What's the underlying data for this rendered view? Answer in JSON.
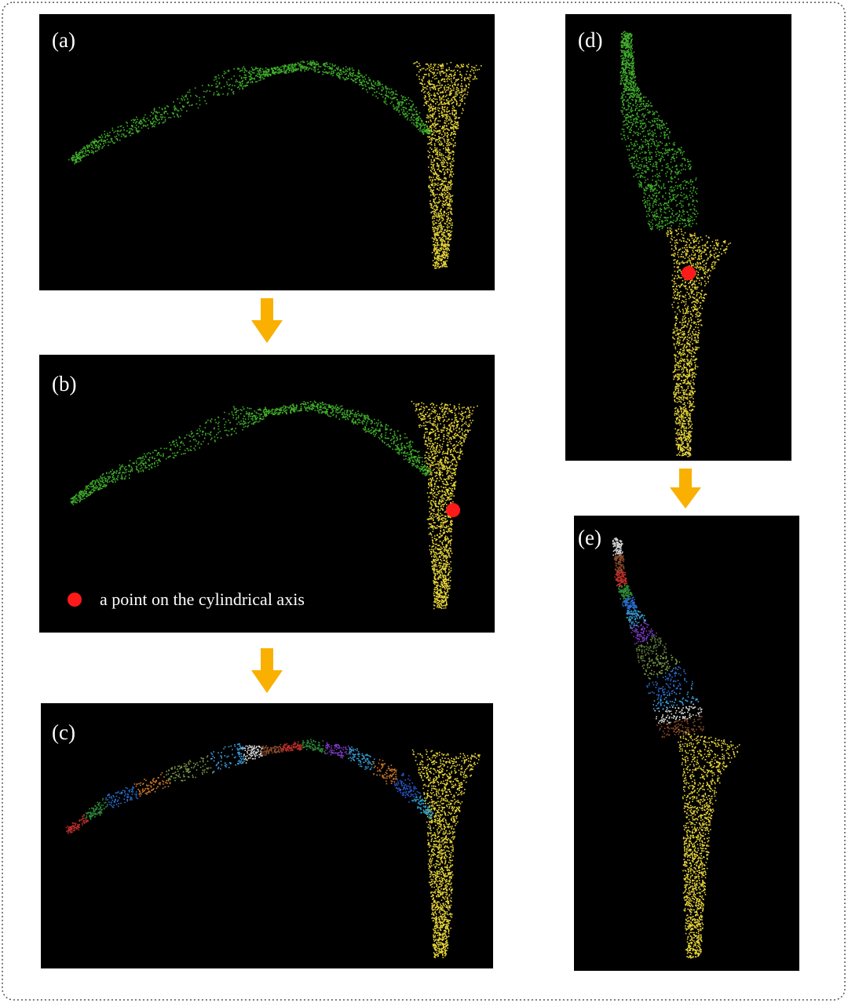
{
  "panels": [
    {
      "label": "(a)"
    },
    {
      "label": "(b)",
      "legend": "a point on the cylindrical axis"
    },
    {
      "label": "(c)"
    },
    {
      "label": "(d)"
    },
    {
      "label": "(e)"
    }
  ]
}
